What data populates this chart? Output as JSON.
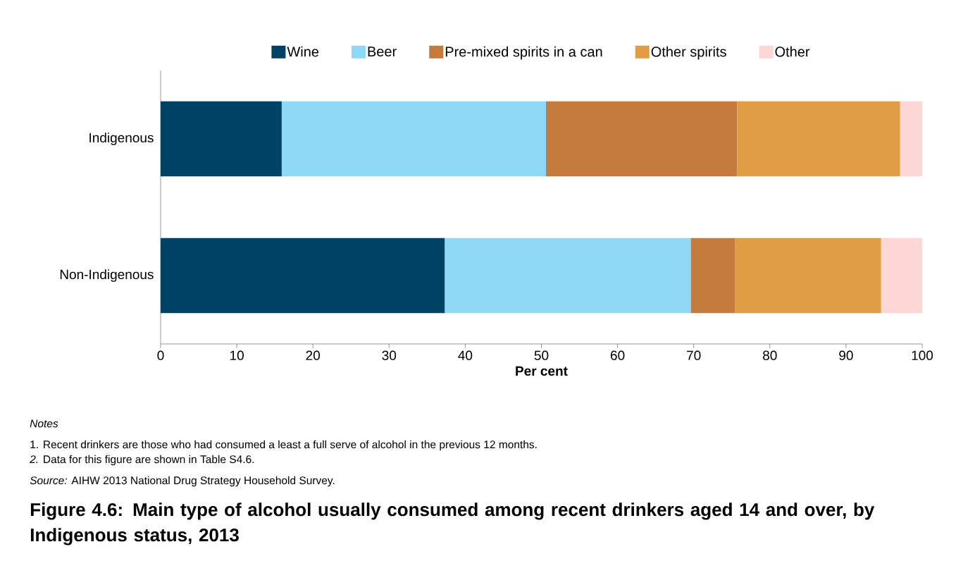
{
  "chart_data": {
    "type": "bar",
    "orientation": "horizontal",
    "stacked": true,
    "title": "Figure 4.6: Main type of alcohol usually consumed among recent drinkers aged 14 and over, by Indigenous status, 2013",
    "xlabel": "Per cent",
    "categories": [
      "Indigenous",
      "Non-Indigenous"
    ],
    "series": [
      {
        "name": "Wine",
        "color": "#004264",
        "values": [
          15.9,
          37.3
        ]
      },
      {
        "name": "Beer",
        "color": "#8fd8f6",
        "values": [
          34.7,
          32.3
        ]
      },
      {
        "name": "Pre-mixed spirits in a can",
        "color": "#c57b3e",
        "values": [
          25.1,
          5.8
        ]
      },
      {
        "name": "Other spirits",
        "color": "#e09d44",
        "values": [
          21.4,
          19.2
        ]
      },
      {
        "name": "Other",
        "color": "#fdd7d5",
        "values": [
          2.9,
          5.4
        ]
      }
    ],
    "xlim": [
      0,
      100
    ],
    "xticks": [
      0,
      10,
      20,
      30,
      40,
      50,
      60,
      70,
      80,
      90,
      100
    ],
    "legend": "top",
    "annotations": [
      "*Notes*",
      "1. Recent drinkers are those who had consumed a least a full serve of alcohol in the previous 12 months.",
      "*2.* Data for this figure are shown in Table S4.6.",
      "*Source:* AIHW 2013 National Drug Strategy Household Survey."
    ]
  }
}
